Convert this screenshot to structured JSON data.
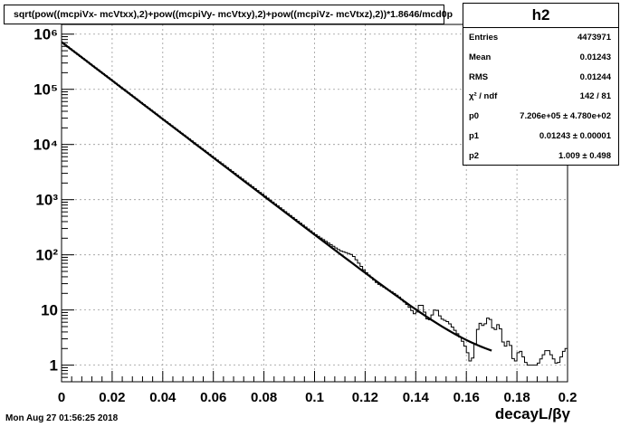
{
  "title": "sqrt(pow((mcpiVx- mcVtxx),2)+pow((mcpiVy- mcVtxy),2)+pow((mcpiVz- mcVtxz),2))*1.8646/mcd0p",
  "stats": {
    "name": "h2",
    "rows": [
      {
        "label": "Entries",
        "value": "4473971"
      },
      {
        "label": "Mean",
        "value": "0.01243"
      },
      {
        "label": "RMS",
        "value": "0.01244"
      },
      {
        "label": "χ² / ndf",
        "value": "142 / 81"
      },
      {
        "label": "p0",
        "value": "7.206e+05 ± 4.780e+02"
      },
      {
        "label": "p1",
        "value": "0.01243 ± 0.00001"
      },
      {
        "label": "p2",
        "value": "1.009 ± 0.498"
      }
    ]
  },
  "datestamp": "Mon Aug 27 01:56:25 2018",
  "colors": {
    "frame": "#000000",
    "grid": "#9a9a9a",
    "hist": "#000000",
    "fit": "#000000"
  },
  "chart_data": {
    "type": "line",
    "xlabel": "decayL/βγ",
    "ylabel": "",
    "xlim": [
      0,
      0.2
    ],
    "ylim": [
      0.5,
      1500000
    ],
    "yscale": "log",
    "grid": true,
    "legend": "top-right",
    "x_ticks": [
      "0",
      "0.02",
      "0.04",
      "0.06",
      "0.08",
      "0.1",
      "0.12",
      "0.14",
      "0.16",
      "0.18",
      "0.2"
    ],
    "y_ticks": [
      {
        "value": 1,
        "label": "1"
      },
      {
        "value": 10,
        "label": "10"
      },
      {
        "value": 100,
        "label": "10²"
      },
      {
        "value": 1000,
        "label": "10³"
      },
      {
        "value": 10000,
        "label": "10⁴"
      },
      {
        "value": 100000,
        "label": "10⁵"
      },
      {
        "value": 1000000,
        "label": "10⁶"
      }
    ],
    "histogram": {
      "bins": 200,
      "points": [
        [
          0.0,
          720000
        ],
        [
          0.02,
          145000
        ],
        [
          0.04,
          29000
        ],
        [
          0.06,
          5900
        ],
        [
          0.08,
          1200
        ],
        [
          0.1,
          240
        ],
        [
          0.11,
          120
        ],
        [
          0.115,
          100
        ],
        [
          0.12,
          50
        ],
        [
          0.125,
          30
        ],
        [
          0.13,
          22
        ],
        [
          0.133,
          18
        ],
        [
          0.137,
          12
        ],
        [
          0.14,
          8
        ],
        [
          0.142,
          14
        ],
        [
          0.145,
          6
        ],
        [
          0.148,
          11
        ],
        [
          0.15,
          7
        ],
        [
          0.153,
          6
        ],
        [
          0.156,
          4
        ],
        [
          0.158,
          3
        ],
        [
          0.16,
          2
        ],
        [
          0.162,
          1
        ],
        [
          0.165,
          6
        ],
        [
          0.167,
          5
        ],
        [
          0.169,
          8
        ],
        [
          0.171,
          4
        ],
        [
          0.173,
          6
        ],
        [
          0.175,
          2
        ],
        [
          0.177,
          3
        ],
        [
          0.179,
          1
        ],
        [
          0.181,
          2
        ],
        [
          0.184,
          1
        ],
        [
          0.188,
          1
        ],
        [
          0.192,
          2
        ],
        [
          0.196,
          1
        ],
        [
          0.199,
          2
        ]
      ]
    },
    "fit": {
      "function": "p0*exp(-x/p1)+p2",
      "p0": 720600,
      "p1": 0.01243,
      "p2": 1.009,
      "x_range": [
        0,
        0.17
      ]
    }
  }
}
